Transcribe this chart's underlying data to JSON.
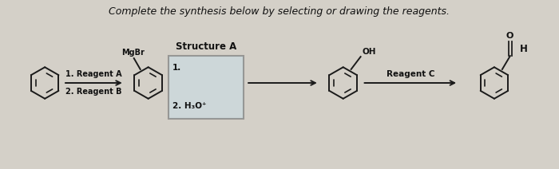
{
  "title_text": "Complete the synthesis below by selecting or drawing the reagents.",
  "title_fontsize": 9.0,
  "background_color": "#d4d0c8",
  "structure_a_label": "Structure A",
  "arrow1_label_top": "1.",
  "arrow1_label_bot": "2. H₃O⁺",
  "arrow2_label": "Reagent C",
  "mgbr_label": "MgBr",
  "reagent_a_label": "1. Reagent A",
  "reagent_b_label": "2. Reagent B",
  "oh_label": "OH",
  "o_label": "O",
  "h_label": "H",
  "line_color": "#1a1a1a",
  "text_color": "#111111",
  "box_facecolor": "#c8dde8",
  "box_edgecolor": "#666666"
}
